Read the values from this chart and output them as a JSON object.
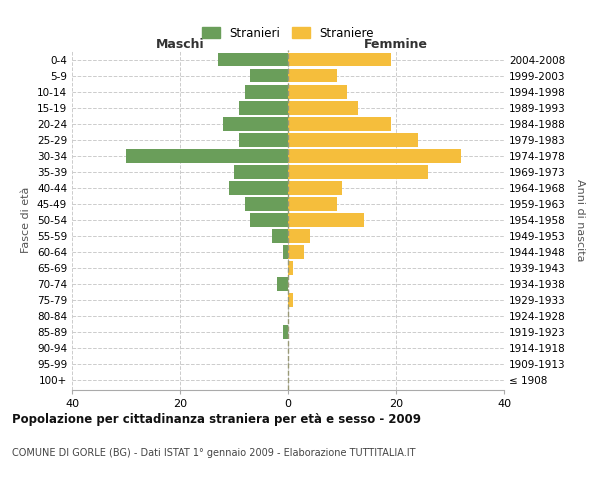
{
  "age_groups": [
    "100+",
    "95-99",
    "90-94",
    "85-89",
    "80-84",
    "75-79",
    "70-74",
    "65-69",
    "60-64",
    "55-59",
    "50-54",
    "45-49",
    "40-44",
    "35-39",
    "30-34",
    "25-29",
    "20-24",
    "15-19",
    "10-14",
    "5-9",
    "0-4"
  ],
  "birth_years": [
    "≤ 1908",
    "1909-1913",
    "1914-1918",
    "1919-1923",
    "1924-1928",
    "1929-1933",
    "1934-1938",
    "1939-1943",
    "1944-1948",
    "1949-1953",
    "1954-1958",
    "1959-1963",
    "1964-1968",
    "1969-1973",
    "1974-1978",
    "1979-1983",
    "1984-1988",
    "1989-1993",
    "1994-1998",
    "1999-2003",
    "2004-2008"
  ],
  "males": [
    0,
    0,
    0,
    1,
    0,
    0,
    2,
    0,
    1,
    3,
    7,
    8,
    11,
    10,
    30,
    9,
    12,
    9,
    8,
    7,
    13
  ],
  "females": [
    0,
    0,
    0,
    0,
    0,
    1,
    0,
    1,
    3,
    4,
    14,
    9,
    10,
    26,
    32,
    24,
    19,
    13,
    11,
    9,
    19
  ],
  "male_color": "#6a9e5a",
  "female_color": "#f5be3c",
  "background_color": "#ffffff",
  "grid_color": "#cccccc",
  "title": "Popolazione per cittadinanza straniera per età e sesso - 2009",
  "subtitle": "COMUNE DI GORLE (BG) - Dati ISTAT 1° gennaio 2009 - Elaborazione TUTTITALIA.IT",
  "left_label": "Maschi",
  "right_label": "Femmine",
  "y_label": "Fasce di età",
  "right_y_label": "Anni di nascita",
  "legend_male": "Stranieri",
  "legend_female": "Straniere",
  "xlim": 40,
  "bar_height": 0.85
}
